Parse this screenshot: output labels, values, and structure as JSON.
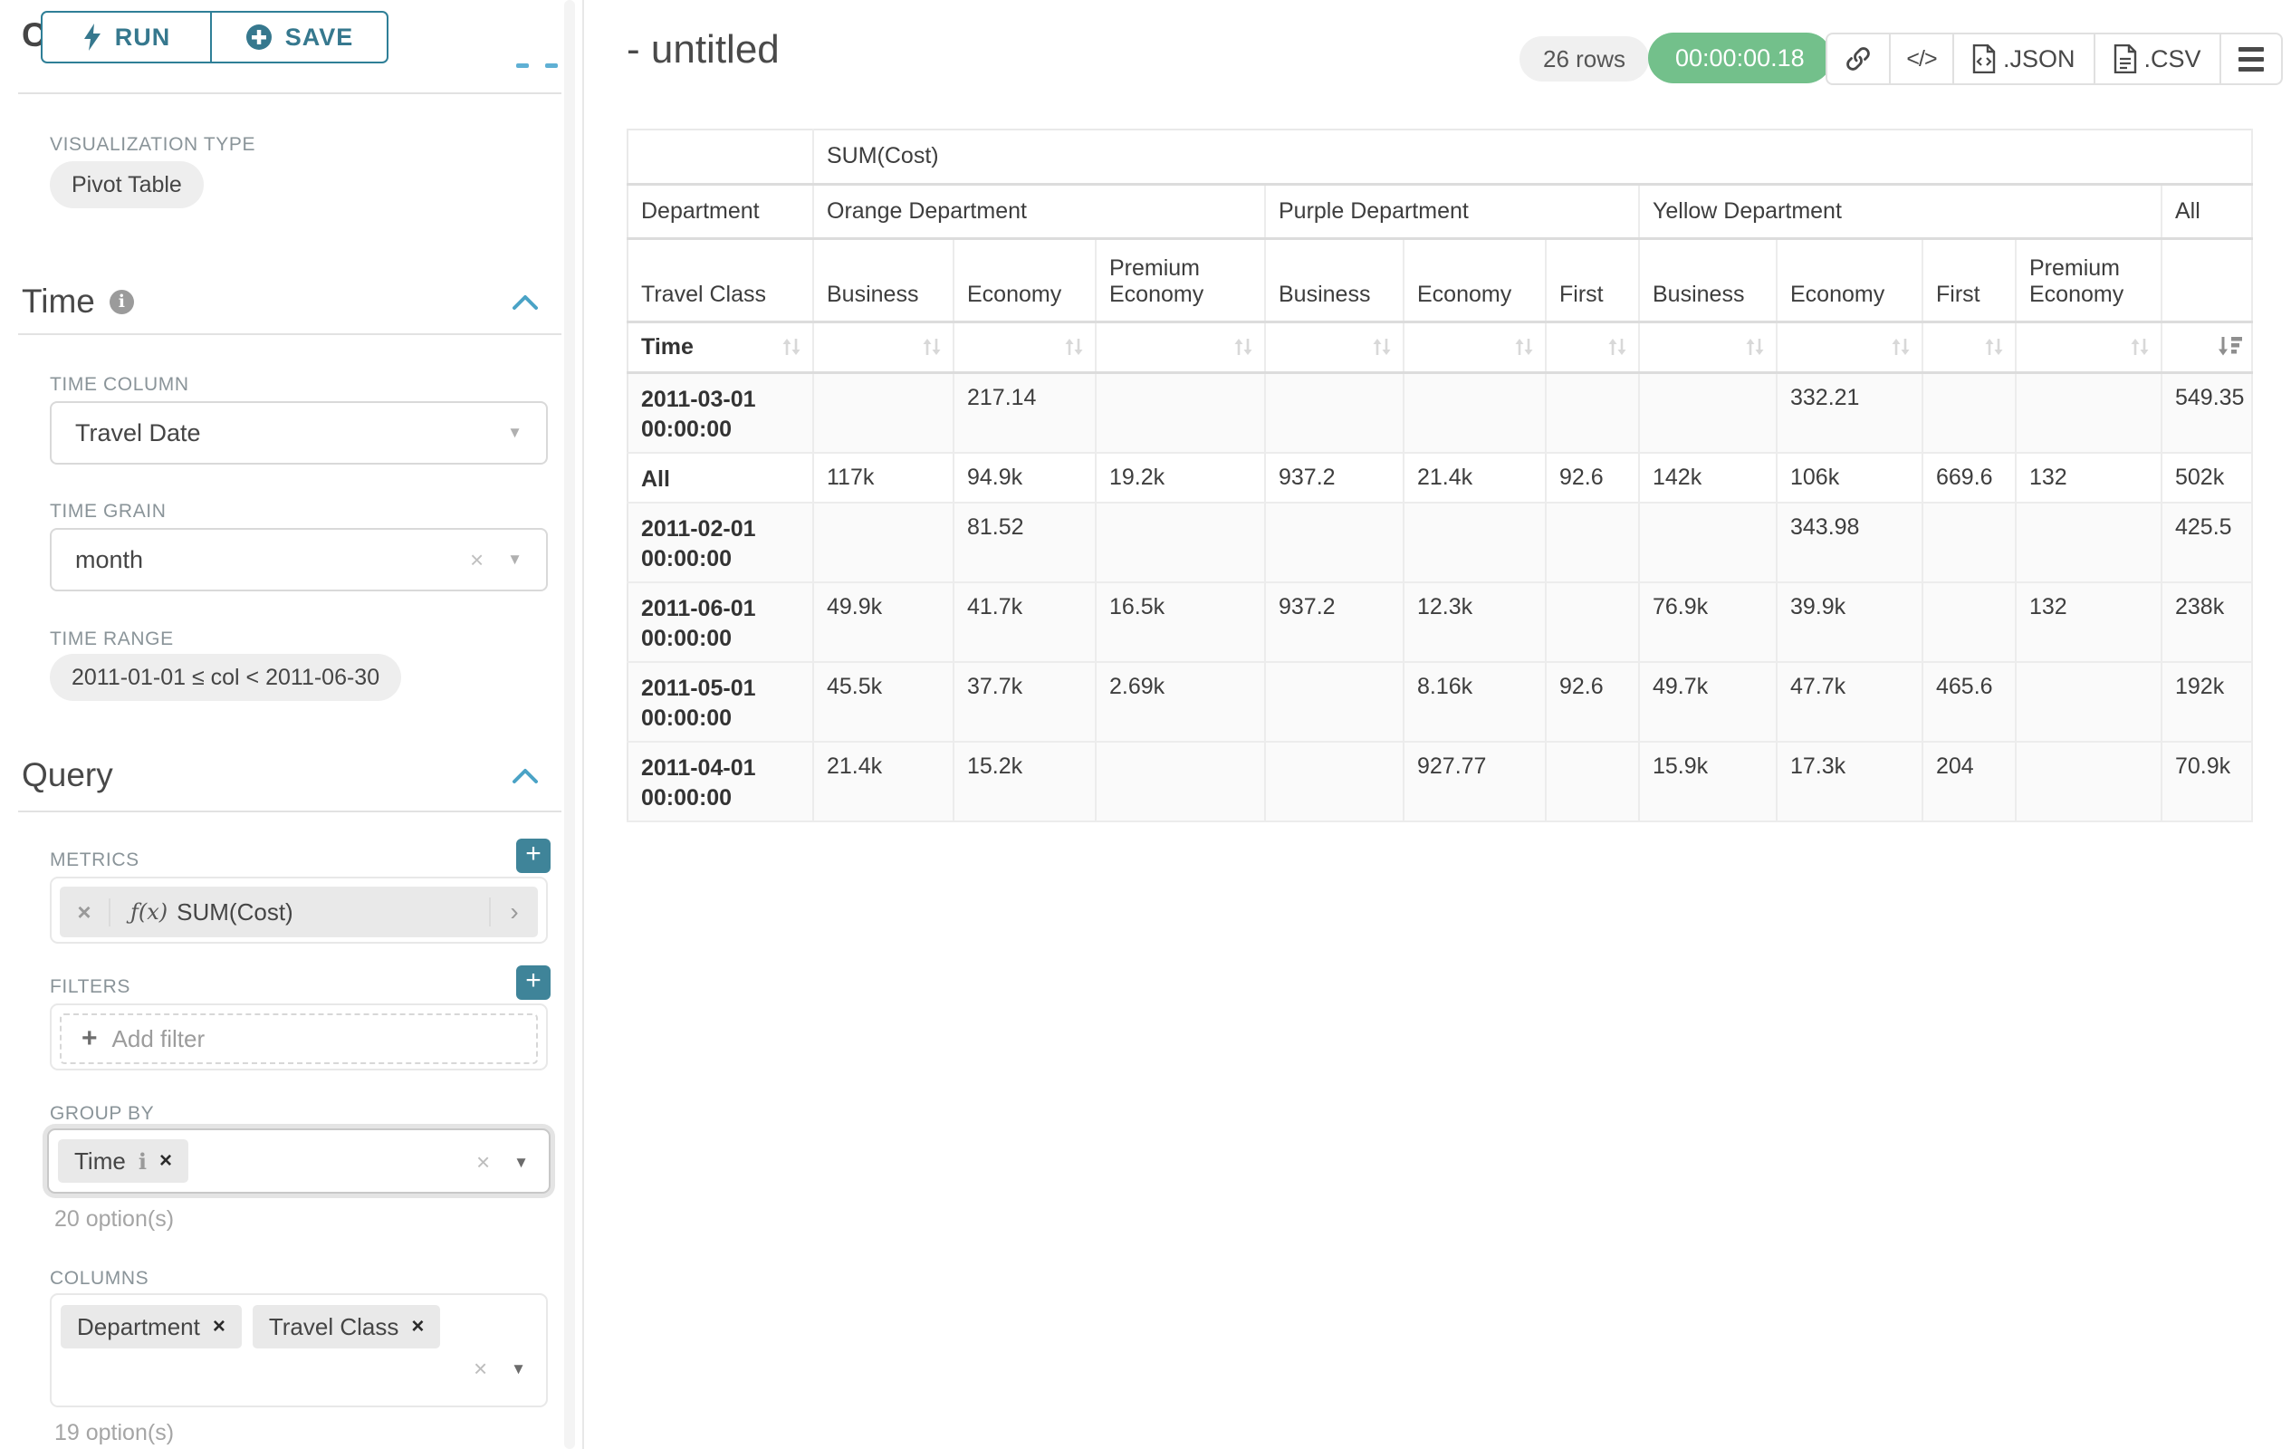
{
  "sidebar": {
    "run_label": "RUN",
    "save_label": "SAVE",
    "chart_type_header": "Chart Type",
    "viz_type": {
      "label": "VISUALIZATION TYPE",
      "value": "Pivot Table"
    },
    "time": {
      "title": "Time",
      "time_column": {
        "label": "TIME COLUMN",
        "value": "Travel Date"
      },
      "time_grain": {
        "label": "TIME GRAIN",
        "value": "month"
      },
      "time_range": {
        "label": "TIME RANGE",
        "value": "2011-01-01 ≤ col < 2011-06-30"
      }
    },
    "query": {
      "title": "Query",
      "metrics": {
        "label": "METRICS",
        "item_prefix": "ƒ(x)",
        "item_name": "SUM(Cost)"
      },
      "filters": {
        "label": "FILTERS",
        "placeholder": "Add filter"
      },
      "group_by": {
        "label": "GROUP BY",
        "chips": [
          "Time"
        ],
        "hint": "20 option(s)"
      },
      "columns": {
        "label": "COLUMNS",
        "chips": [
          "Department",
          "Travel Class"
        ],
        "hint": "19 option(s)"
      }
    }
  },
  "header": {
    "title": "- untitled",
    "row_count": "26 rows",
    "timer": "00:00:00.18",
    "export_json_label": ".JSON",
    "export_csv_label": ".CSV"
  },
  "chart_data": {
    "type": "table",
    "metric_header": "SUM(Cost)",
    "corner": {
      "col_field": "Department",
      "row_field": "Travel Class",
      "row_axis": "Time"
    },
    "column_groups": [
      {
        "label": "Orange Department",
        "children": [
          "Business",
          "Economy",
          "Premium Economy"
        ]
      },
      {
        "label": "Purple Department",
        "children": [
          "Business",
          "Economy",
          "First"
        ]
      },
      {
        "label": "Yellow Department",
        "children": [
          "Business",
          "Economy",
          "First",
          "Premium Economy"
        ]
      },
      {
        "label": "All",
        "children": [
          ""
        ]
      }
    ],
    "rows": [
      {
        "label": "2011-03-01 00:00:00",
        "values": [
          "",
          "217.14",
          "",
          "",
          "",
          "",
          "",
          "332.21",
          "",
          "",
          "549.35"
        ]
      },
      {
        "label": "All",
        "values": [
          "117k",
          "94.9k",
          "19.2k",
          "937.2",
          "21.4k",
          "92.6",
          "142k",
          "106k",
          "669.6",
          "132",
          "502k"
        ]
      },
      {
        "label": "2011-02-01 00:00:00",
        "values": [
          "",
          "81.52",
          "",
          "",
          "",
          "",
          "",
          "343.98",
          "",
          "",
          "425.5"
        ]
      },
      {
        "label": "2011-06-01 00:00:00",
        "values": [
          "49.9k",
          "41.7k",
          "16.5k",
          "937.2",
          "12.3k",
          "",
          "76.9k",
          "39.9k",
          "",
          "132",
          "238k"
        ]
      },
      {
        "label": "2011-05-01 00:00:00",
        "values": [
          "45.5k",
          "37.7k",
          "2.69k",
          "",
          "8.16k",
          "92.6",
          "49.7k",
          "47.7k",
          "465.6",
          "",
          "192k"
        ]
      },
      {
        "label": "2011-04-01 00:00:00",
        "values": [
          "21.4k",
          "15.2k",
          "",
          "",
          "927.77",
          "",
          "15.9k",
          "17.3k",
          "204",
          "",
          "70.9k"
        ]
      }
    ],
    "sort": {
      "active_column": "All",
      "direction": "desc"
    }
  },
  "colors": {
    "accent_teal": "#3f8499",
    "chevron_blue": "#4aa3c6",
    "timer_green": "#73c08b"
  }
}
